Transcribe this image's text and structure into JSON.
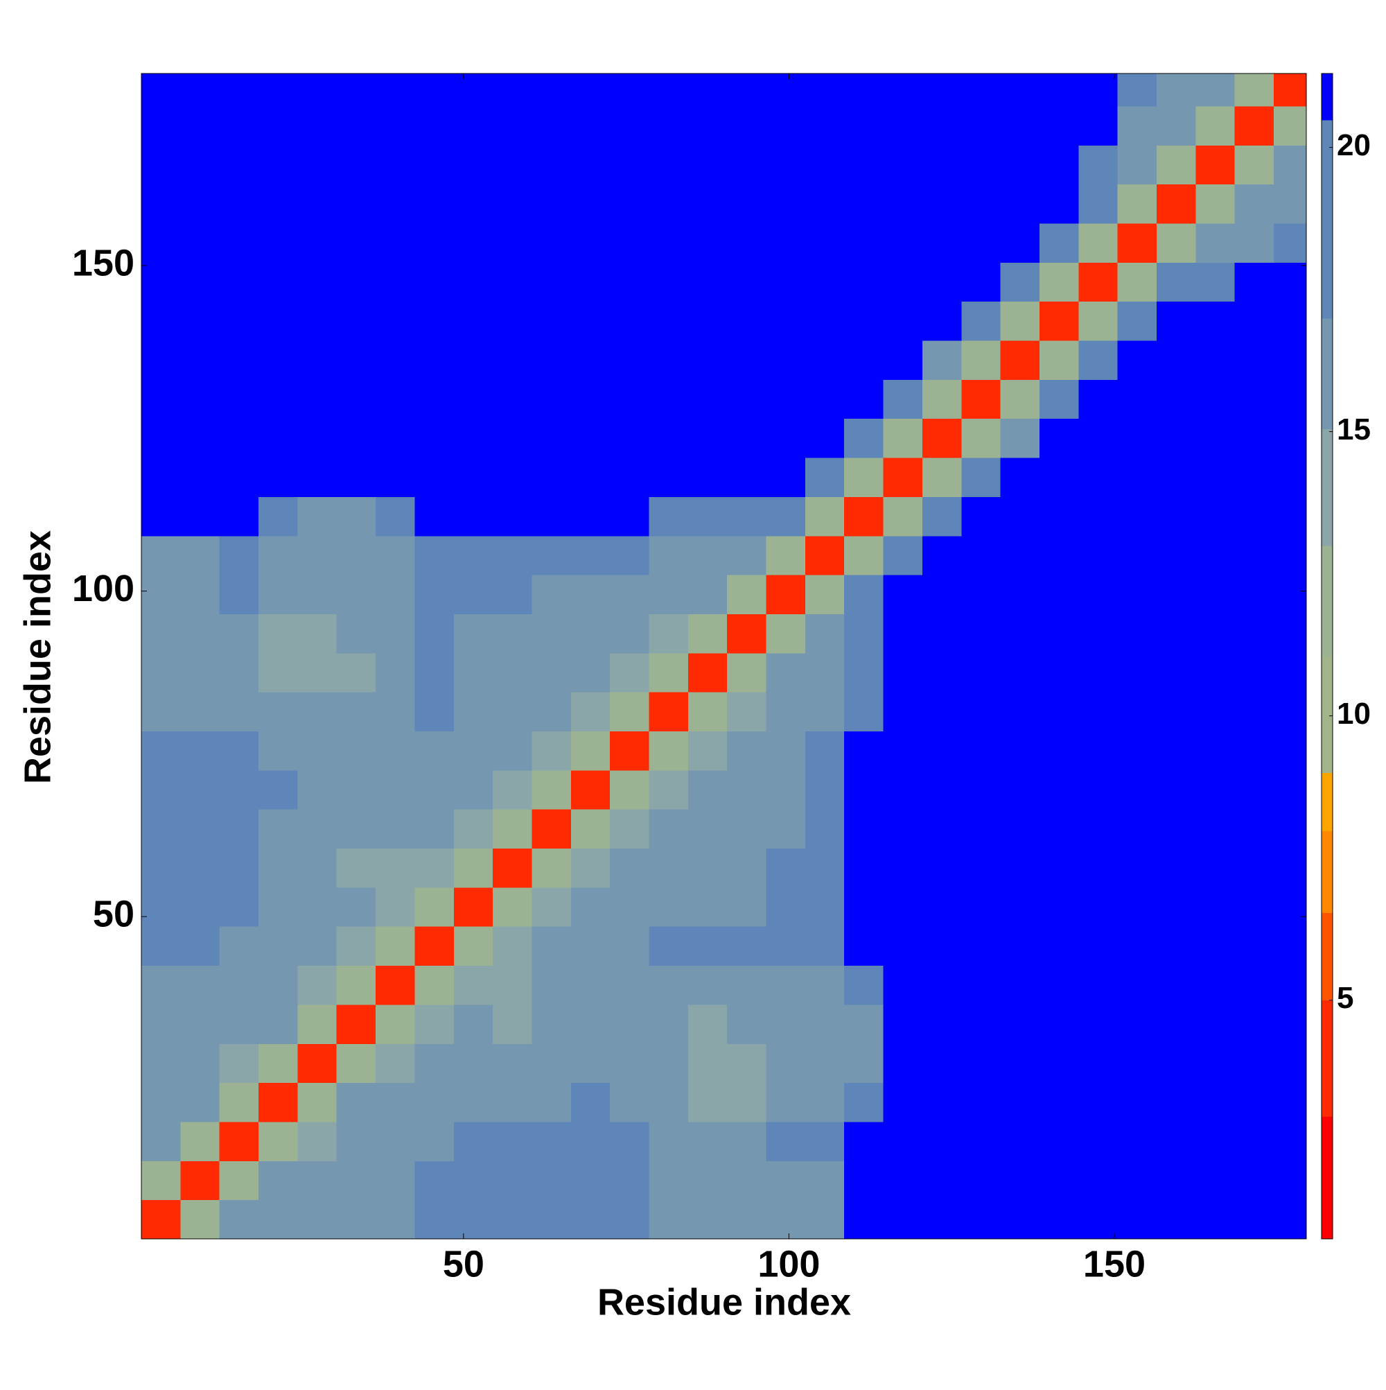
{
  "chart_data": {
    "type": "heatmap",
    "x_label": "Residue index",
    "y_label": "Residue index",
    "x_bins": [
      0.5,
      6.5,
      12.5,
      18.5,
      24.5,
      30.5,
      36.5,
      42.5,
      48.5,
      54.5,
      60.5,
      66.5,
      72.5,
      78.5,
      84.5,
      90.5,
      96.5,
      102.5,
      108.5,
      114.5,
      120.5,
      126.5,
      132.5,
      138.5,
      144.5,
      150.5,
      156.5,
      162.5,
      168.5,
      174.5,
      179.5
    ],
    "y_bins": [
      0.5,
      6.5,
      12.5,
      18.5,
      24.5,
      30.5,
      36.5,
      42.5,
      48.5,
      54.5,
      60.5,
      66.5,
      72.5,
      78.5,
      84.5,
      90.5,
      96.5,
      102.5,
      108.5,
      114.5,
      120.5,
      126.5,
      132.5,
      138.5,
      144.5,
      150.5,
      156.5,
      162.5,
      168.5,
      174.5,
      179.5
    ],
    "xlim": [
      0.5,
      179.5
    ],
    "ylim": [
      0.5,
      179.5
    ],
    "xticks": [
      50,
      100,
      150
    ],
    "yticks": [
      50,
      100,
      150
    ],
    "clim": [
      0.8,
      21.3
    ],
    "cticks": [
      5,
      10,
      15,
      20
    ],
    "colorscale": [
      [
        0.8,
        "#ff0000"
      ],
      [
        3,
        "#ff2a00"
      ],
      [
        5,
        "#ff5500"
      ],
      [
        6.5,
        "#ff8800"
      ],
      [
        8,
        "#ffa500"
      ],
      [
        9,
        "#a4b48a"
      ],
      [
        11,
        "#9bb393"
      ],
      [
        13,
        "#8aa6a8"
      ],
      [
        15,
        "#7598b0"
      ],
      [
        17,
        "#5f86b8"
      ],
      [
        20.5,
        "#0000ff"
      ]
    ],
    "values": [
      [
        4,
        12,
        15,
        15,
        15,
        15,
        16,
        17,
        19,
        19,
        19,
        19,
        18,
        16,
        15,
        15,
        15,
        16,
        21,
        21,
        21,
        21,
        21,
        21,
        21,
        21,
        21,
        21,
        21,
        21
      ],
      [
        12,
        4,
        12,
        15,
        15,
        15,
        16,
        17,
        19,
        19,
        18,
        19,
        18,
        16,
        15,
        15,
        15,
        16,
        21,
        21,
        21,
        21,
        21,
        21,
        21,
        21,
        21,
        21,
        21,
        21
      ],
      [
        15,
        12,
        4,
        12,
        14,
        15,
        15,
        16,
        17,
        17,
        17,
        18,
        18,
        16,
        16,
        16,
        17,
        18,
        21,
        21,
        21,
        21,
        21,
        21,
        21,
        21,
        21,
        21,
        21,
        21
      ],
      [
        15,
        15,
        12,
        4,
        12,
        15,
        15,
        16,
        16,
        16,
        16,
        17,
        16,
        16,
        14,
        14,
        15,
        15,
        17,
        21,
        21,
        21,
        21,
        21,
        21,
        21,
        21,
        21,
        21,
        21
      ],
      [
        15,
        15,
        14,
        12,
        4,
        11,
        14,
        15,
        16,
        16,
        16,
        15,
        15,
        15,
        14,
        14,
        15,
        15,
        16,
        21,
        21,
        21,
        21,
        21,
        21,
        21,
        21,
        21,
        21,
        21
      ],
      [
        15,
        15,
        15,
        15,
        11,
        4,
        11,
        14,
        15,
        14,
        15,
        15,
        15,
        15,
        14,
        15,
        15,
        15,
        16,
        21,
        21,
        21,
        21,
        21,
        21,
        21,
        21,
        21,
        21,
        21
      ],
      [
        16,
        16,
        15,
        15,
        14,
        11,
        4,
        11,
        14,
        14,
        15,
        15,
        16,
        15,
        15,
        16,
        16,
        16,
        17,
        21,
        21,
        21,
        21,
        21,
        21,
        21,
        21,
        21,
        21,
        21
      ],
      [
        17,
        17,
        16,
        16,
        15,
        14,
        11,
        4,
        11,
        14,
        15,
        15,
        16,
        17,
        17,
        17,
        18,
        19,
        21,
        21,
        21,
        21,
        21,
        21,
        21,
        21,
        21,
        21,
        21,
        21
      ],
      [
        19,
        19,
        17,
        16,
        16,
        15,
        14,
        11,
        4,
        11,
        14,
        15,
        15,
        15,
        16,
        16,
        17,
        19,
        21,
        21,
        21,
        21,
        21,
        21,
        21,
        21,
        21,
        21,
        21,
        21
      ],
      [
        19,
        19,
        17,
        16,
        16,
        14,
        14,
        14,
        11,
        4,
        11,
        14,
        15,
        15,
        15,
        16,
        17,
        19,
        21,
        21,
        21,
        21,
        21,
        21,
        21,
        21,
        21,
        21,
        21,
        21
      ],
      [
        19,
        18,
        17,
        16,
        16,
        15,
        15,
        15,
        14,
        11,
        4,
        11,
        14,
        15,
        15,
        15,
        16,
        18,
        21,
        21,
        21,
        21,
        21,
        21,
        21,
        21,
        21,
        21,
        21,
        21
      ],
      [
        19,
        19,
        18,
        17,
        15,
        15,
        15,
        15,
        15,
        14,
        11,
        4,
        11,
        14,
        15,
        15,
        16,
        18,
        21,
        21,
        21,
        21,
        21,
        21,
        21,
        21,
        21,
        21,
        21,
        21
      ],
      [
        18,
        18,
        18,
        16,
        15,
        15,
        16,
        16,
        15,
        15,
        14,
        11,
        4,
        11,
        14,
        15,
        16,
        17,
        21,
        21,
        21,
        21,
        21,
        21,
        21,
        21,
        21,
        21,
        21,
        21
      ],
      [
        16,
        16,
        16,
        16,
        15,
        15,
        15,
        17,
        15,
        15,
        15,
        14,
        11,
        4,
        11,
        14,
        15,
        16,
        19,
        21,
        21,
        21,
        21,
        21,
        21,
        21,
        21,
        21,
        21,
        21
      ],
      [
        15,
        15,
        16,
        14,
        14,
        14,
        15,
        17,
        16,
        15,
        15,
        15,
        14,
        11,
        4,
        11,
        15,
        16,
        19,
        21,
        21,
        21,
        21,
        21,
        21,
        21,
        21,
        21,
        21,
        21
      ],
      [
        15,
        15,
        16,
        14,
        14,
        15,
        16,
        17,
        16,
        16,
        15,
        15,
        15,
        14,
        11,
        4,
        12,
        16,
        19,
        21,
        21,
        21,
        21,
        21,
        21,
        21,
        21,
        21,
        21,
        21
      ],
      [
        15,
        15,
        17,
        15,
        15,
        15,
        16,
        18,
        17,
        17,
        16,
        16,
        16,
        15,
        15,
        12,
        4,
        12,
        17,
        21,
        21,
        21,
        21,
        21,
        21,
        21,
        21,
        21,
        21,
        21
      ],
      [
        16,
        16,
        18,
        15,
        15,
        15,
        16,
        19,
        19,
        19,
        18,
        18,
        17,
        16,
        16,
        16,
        12,
        4,
        12,
        18,
        21,
        21,
        21,
        21,
        21,
        21,
        21,
        21,
        21,
        21
      ],
      [
        21,
        21,
        21,
        17,
        16,
        16,
        17,
        21,
        21,
        21,
        21,
        21,
        21,
        19,
        19,
        19,
        17,
        12,
        4,
        12,
        18,
        21,
        21,
        21,
        21,
        21,
        21,
        21,
        21,
        21
      ],
      [
        21,
        21,
        21,
        21,
        21,
        21,
        21,
        21,
        21,
        21,
        21,
        21,
        21,
        21,
        21,
        21,
        21,
        18,
        12,
        4,
        12,
        17,
        21,
        21,
        21,
        21,
        21,
        21,
        21,
        21
      ],
      [
        21,
        21,
        21,
        21,
        21,
        21,
        21,
        21,
        21,
        21,
        21,
        21,
        21,
        21,
        21,
        21,
        21,
        21,
        18,
        12,
        4,
        11,
        16,
        21,
        21,
        21,
        21,
        21,
        21,
        21
      ],
      [
        21,
        21,
        21,
        21,
        21,
        21,
        21,
        21,
        21,
        21,
        21,
        21,
        21,
        21,
        21,
        21,
        21,
        21,
        21,
        17,
        11,
        4,
        12,
        18,
        21,
        21,
        21,
        21,
        21,
        21
      ],
      [
        21,
        21,
        21,
        21,
        21,
        21,
        21,
        21,
        21,
        21,
        21,
        21,
        21,
        21,
        21,
        21,
        21,
        21,
        21,
        21,
        16,
        12,
        4,
        12,
        18,
        21,
        21,
        21,
        21,
        21
      ],
      [
        21,
        21,
        21,
        21,
        21,
        21,
        21,
        21,
        21,
        21,
        21,
        21,
        21,
        21,
        21,
        21,
        21,
        21,
        21,
        21,
        21,
        18,
        12,
        4,
        12,
        18,
        21,
        21,
        21,
        21
      ],
      [
        21,
        21,
        21,
        21,
        21,
        21,
        21,
        21,
        21,
        21,
        21,
        21,
        21,
        21,
        21,
        21,
        21,
        21,
        21,
        21,
        21,
        21,
        18,
        12,
        4,
        12,
        18,
        19,
        21,
        21
      ],
      [
        21,
        21,
        21,
        21,
        21,
        21,
        21,
        21,
        21,
        21,
        21,
        21,
        21,
        21,
        21,
        21,
        21,
        21,
        21,
        21,
        21,
        21,
        21,
        18,
        12,
        4,
        12,
        15,
        16,
        17
      ],
      [
        21,
        21,
        21,
        21,
        21,
        21,
        21,
        21,
        21,
        21,
        21,
        21,
        21,
        21,
        21,
        21,
        21,
        21,
        21,
        21,
        21,
        21,
        21,
        21,
        18,
        12,
        4,
        12,
        15,
        15
      ],
      [
        21,
        21,
        21,
        21,
        21,
        21,
        21,
        21,
        21,
        21,
        21,
        21,
        21,
        21,
        21,
        21,
        21,
        21,
        21,
        21,
        21,
        21,
        21,
        21,
        19,
        15,
        12,
        4,
        12,
        15
      ],
      [
        21,
        21,
        21,
        21,
        21,
        21,
        21,
        21,
        21,
        21,
        21,
        21,
        21,
        21,
        21,
        21,
        21,
        21,
        21,
        21,
        21,
        21,
        21,
        21,
        21,
        16,
        15,
        12,
        4,
        12
      ],
      [
        21,
        21,
        21,
        21,
        21,
        21,
        21,
        21,
        21,
        21,
        21,
        21,
        21,
        21,
        21,
        21,
        21,
        21,
        21,
        21,
        21,
        21,
        21,
        21,
        21,
        17,
        15,
        15,
        12,
        4
      ]
    ]
  }
}
